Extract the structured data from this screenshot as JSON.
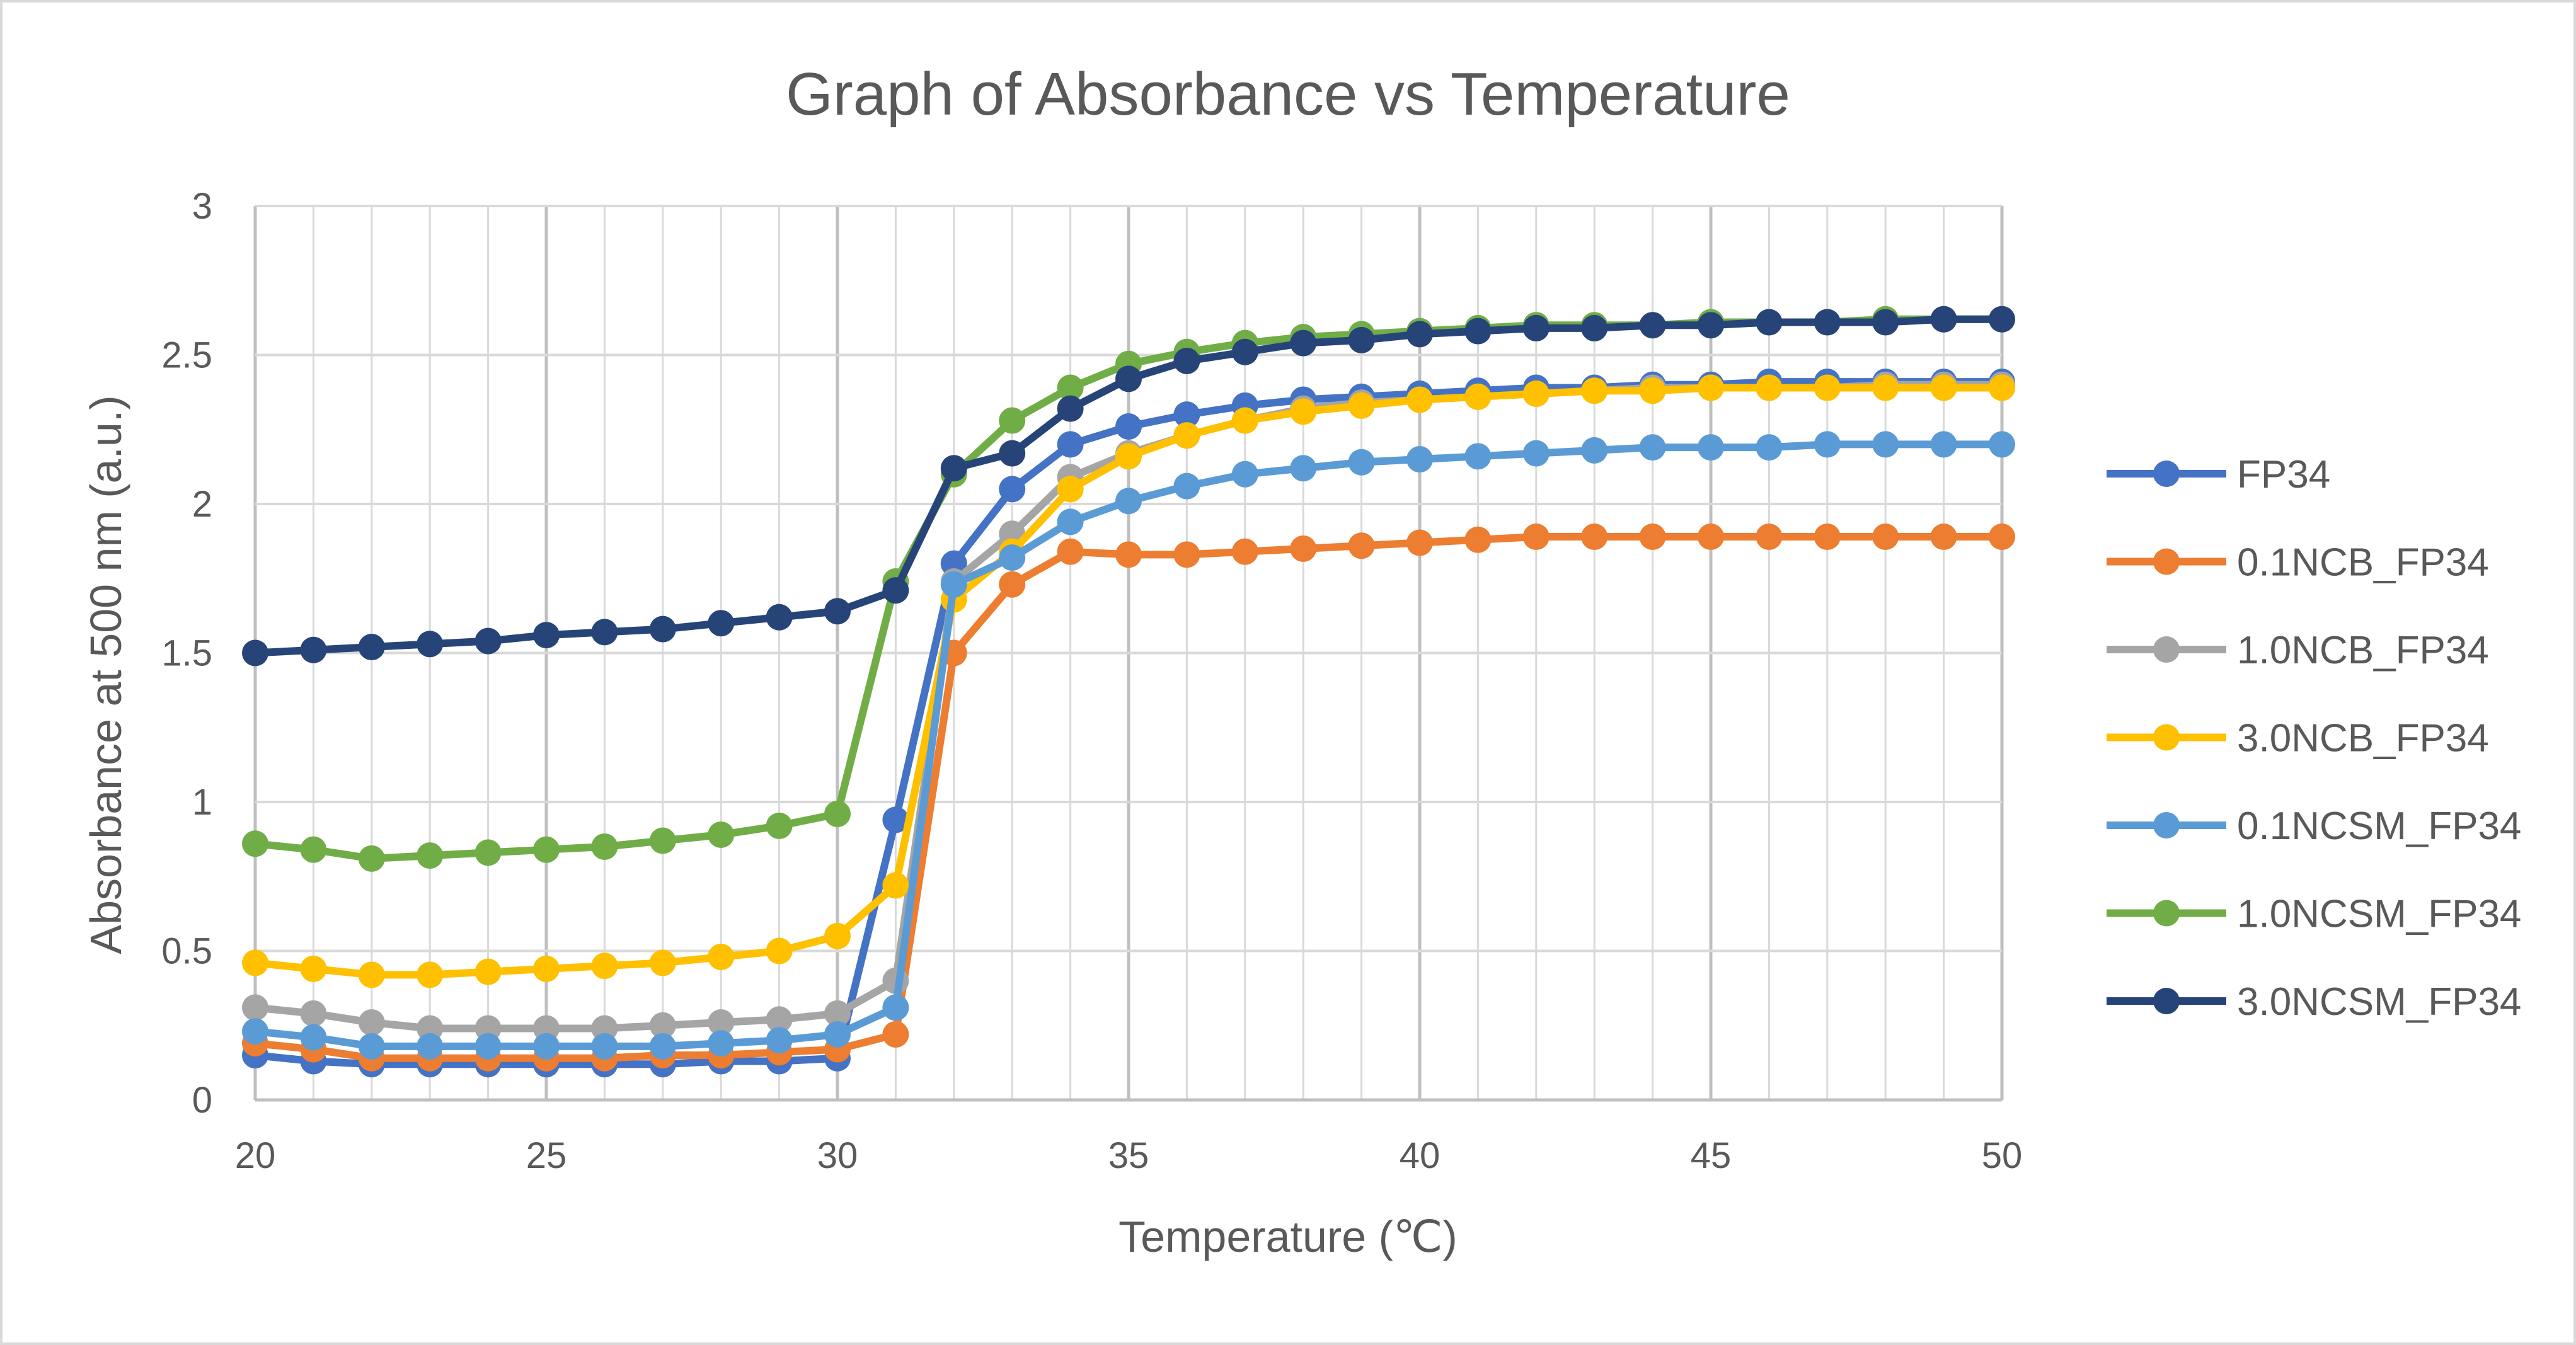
{
  "chart_data": {
    "type": "line",
    "title": "Graph of Absorbance vs Temperature",
    "xlabel": "Temperature (℃)",
    "ylabel": "Absorbance at 500 nm (a.u.)",
    "xlim": [
      20,
      50
    ],
    "ylim": [
      0,
      3
    ],
    "xticks": [
      "20",
      "25",
      "30",
      "35",
      "40",
      "45",
      "50"
    ],
    "yticks": [
      "0",
      "0.5",
      "1",
      "1.5",
      "2",
      "2.5",
      "3"
    ],
    "grid": true,
    "legend_position": "right",
    "x": [
      20,
      21,
      22,
      23,
      24,
      25,
      26,
      27,
      28,
      29,
      30,
      31,
      32,
      33,
      34,
      35,
      36,
      37,
      38,
      39,
      40,
      41,
      42,
      43,
      44,
      45,
      46,
      47,
      48,
      49,
      50
    ],
    "series": [
      {
        "name": "FP34",
        "color": "#4472C4",
        "values": [
          0.15,
          0.13,
          0.12,
          0.12,
          0.12,
          0.12,
          0.12,
          0.12,
          0.13,
          0.13,
          0.14,
          0.94,
          1.8,
          2.05,
          2.2,
          2.26,
          2.3,
          2.33,
          2.35,
          2.36,
          2.37,
          2.38,
          2.39,
          2.39,
          2.4,
          2.4,
          2.41,
          2.41,
          2.41,
          2.41,
          2.41
        ]
      },
      {
        "name": "0.1NCB_FP34",
        "color": "#ED7D31",
        "values": [
          0.19,
          0.17,
          0.14,
          0.14,
          0.14,
          0.14,
          0.14,
          0.15,
          0.15,
          0.16,
          0.17,
          0.22,
          1.5,
          1.73,
          1.84,
          1.83,
          1.83,
          1.84,
          1.85,
          1.86,
          1.87,
          1.88,
          1.89,
          1.89,
          1.89,
          1.89,
          1.89,
          1.89,
          1.89,
          1.89,
          1.89
        ]
      },
      {
        "name": "1.0NCB_FP34",
        "color": "#A5A5A5",
        "values": [
          0.31,
          0.29,
          0.26,
          0.24,
          0.24,
          0.24,
          0.24,
          0.25,
          0.26,
          0.27,
          0.29,
          0.4,
          1.74,
          1.9,
          2.09,
          2.17,
          2.23,
          2.28,
          2.32,
          2.34,
          2.35,
          2.36,
          2.37,
          2.38,
          2.39,
          2.39,
          2.39,
          2.39,
          2.4,
          2.4,
          2.4
        ]
      },
      {
        "name": "3.0NCB_FP34",
        "color": "#FFC000",
        "values": [
          0.46,
          0.44,
          0.42,
          0.42,
          0.43,
          0.44,
          0.45,
          0.46,
          0.48,
          0.5,
          0.55,
          0.72,
          1.68,
          1.84,
          2.05,
          2.16,
          2.23,
          2.28,
          2.31,
          2.33,
          2.35,
          2.36,
          2.37,
          2.38,
          2.38,
          2.39,
          2.39,
          2.39,
          2.39,
          2.39,
          2.39
        ]
      },
      {
        "name": "0.1NCSM_FP34",
        "color": "#5B9BD5",
        "values": [
          0.23,
          0.21,
          0.18,
          0.18,
          0.18,
          0.18,
          0.18,
          0.18,
          0.19,
          0.2,
          0.22,
          0.31,
          1.73,
          1.82,
          1.94,
          2.01,
          2.06,
          2.1,
          2.12,
          2.14,
          2.15,
          2.16,
          2.17,
          2.18,
          2.19,
          2.19,
          2.19,
          2.2,
          2.2,
          2.2,
          2.2
        ]
      },
      {
        "name": "1.0NCSM_FP34",
        "color": "#70AD47",
        "values": [
          0.86,
          0.84,
          0.81,
          0.82,
          0.83,
          0.84,
          0.85,
          0.87,
          0.89,
          0.92,
          0.96,
          1.74,
          2.1,
          2.28,
          2.39,
          2.47,
          2.51,
          2.54,
          2.56,
          2.57,
          2.58,
          2.59,
          2.6,
          2.6,
          2.6,
          2.61,
          2.61,
          2.61,
          2.62,
          2.62,
          2.62
        ]
      },
      {
        "name": "3.0NCSM_FP34",
        "color": "#264478",
        "values": [
          1.5,
          1.51,
          1.52,
          1.53,
          1.54,
          1.56,
          1.57,
          1.58,
          1.6,
          1.62,
          1.64,
          1.71,
          2.12,
          2.17,
          2.32,
          2.42,
          2.48,
          2.51,
          2.54,
          2.55,
          2.57,
          2.58,
          2.59,
          2.59,
          2.6,
          2.6,
          2.61,
          2.61,
          2.61,
          2.62,
          2.62
        ]
      }
    ]
  }
}
